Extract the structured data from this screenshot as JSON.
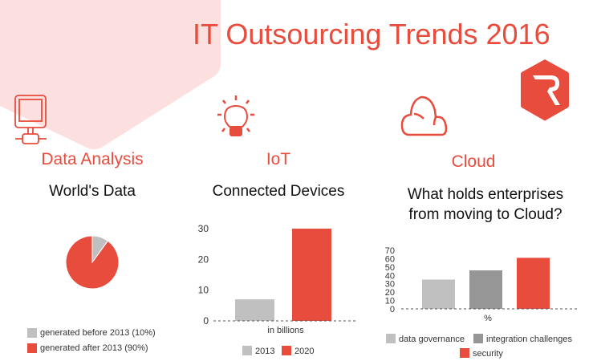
{
  "title": "IT Outsourcing Trends 2016",
  "colors": {
    "accent": "#e84c3d",
    "pink_bg": "#fce0df",
    "light_gray": "#c0c0c0",
    "dark_gray": "#969696"
  },
  "sections": {
    "data_analysis": {
      "heading": "Data Analysis",
      "subtitle": "World's Data",
      "icon": "computer-monitor-icon"
    },
    "iot": {
      "heading": "IoT",
      "subtitle": "Connected Devices",
      "icon": "lightbulb-icon"
    },
    "cloud": {
      "heading": "Cloud",
      "subtitle_line1": "What holds enterprises",
      "subtitle_line2": "from moving to Cloud?",
      "icon": "cloud-icon"
    }
  },
  "logo": {
    "icon": "r-hexagon-logo"
  },
  "chart_data": [
    {
      "type": "pie",
      "slices": [
        {
          "label": "generated before 2013 (10%)",
          "value": 10,
          "color": "#c0c0c0"
        },
        {
          "label": "generated after 2013 (90%)",
          "value": 90,
          "color": "#e84c3d"
        }
      ],
      "legend": "bottom"
    },
    {
      "type": "bar",
      "categories": [
        "2013",
        "2020"
      ],
      "values": [
        7,
        30
      ],
      "colors": [
        "#c0c0c0",
        "#e84c3d"
      ],
      "xlabel": "in billions",
      "yticks": [
        "0",
        "10",
        "20",
        "30"
      ],
      "ylim": [
        0,
        30
      ],
      "legend": "bottom"
    },
    {
      "type": "bar",
      "categories": [
        "data governance",
        "integration challenges",
        "security"
      ],
      "values": [
        35,
        46,
        61
      ],
      "colors": [
        "#c0c0c0",
        "#969696",
        "#e84c3d"
      ],
      "xlabel": "%",
      "yticks": [
        "0",
        "10",
        "20",
        "30",
        "40",
        "50",
        "60",
        "70"
      ],
      "ylim": [
        0,
        70
      ],
      "legend": "bottom"
    }
  ]
}
